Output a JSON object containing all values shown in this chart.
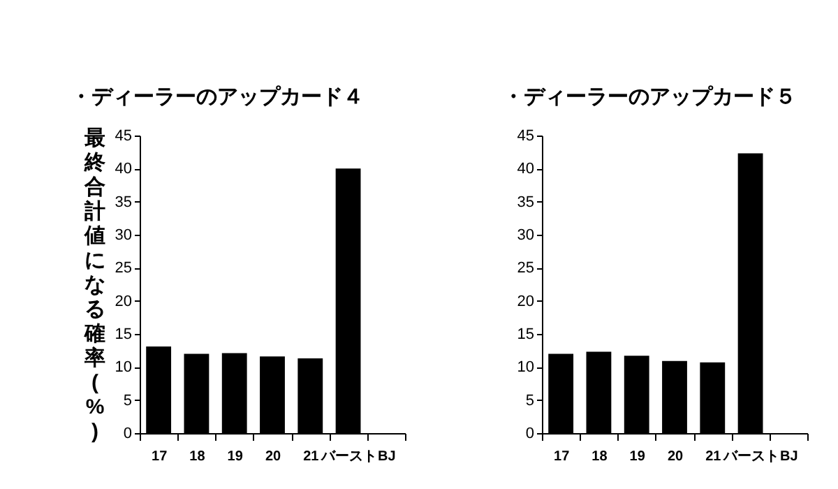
{
  "chart_data": [
    {
      "type": "bar",
      "title": "・ディーラーのアップカード４",
      "ylabel": "最終合計値になる確率(%)",
      "categories": [
        "17",
        "18",
        "19",
        "20",
        "21",
        "バースト",
        "BJ"
      ],
      "series": [
        {
          "color": "#000000",
          "values": [
            13.1,
            12.0,
            12.1,
            11.6,
            11.3,
            40.0,
            0
          ]
        }
      ],
      "ylim": [
        0,
        45
      ],
      "yticks": [
        0,
        5,
        10,
        15,
        20,
        25,
        30,
        35,
        40,
        45
      ],
      "grid": false
    },
    {
      "type": "bar",
      "title": "・ディーラーのアップカード５",
      "categories": [
        "17",
        "18",
        "19",
        "20",
        "21",
        "バースト",
        "BJ"
      ],
      "series": [
        {
          "color": "#000000",
          "values": [
            12.0,
            12.3,
            11.7,
            10.9,
            10.7,
            42.3,
            0
          ]
        }
      ],
      "ylim": [
        0,
        45
      ],
      "yticks": [
        0,
        5,
        10,
        15,
        20,
        25,
        30,
        35,
        40,
        45
      ],
      "grid": false
    }
  ]
}
